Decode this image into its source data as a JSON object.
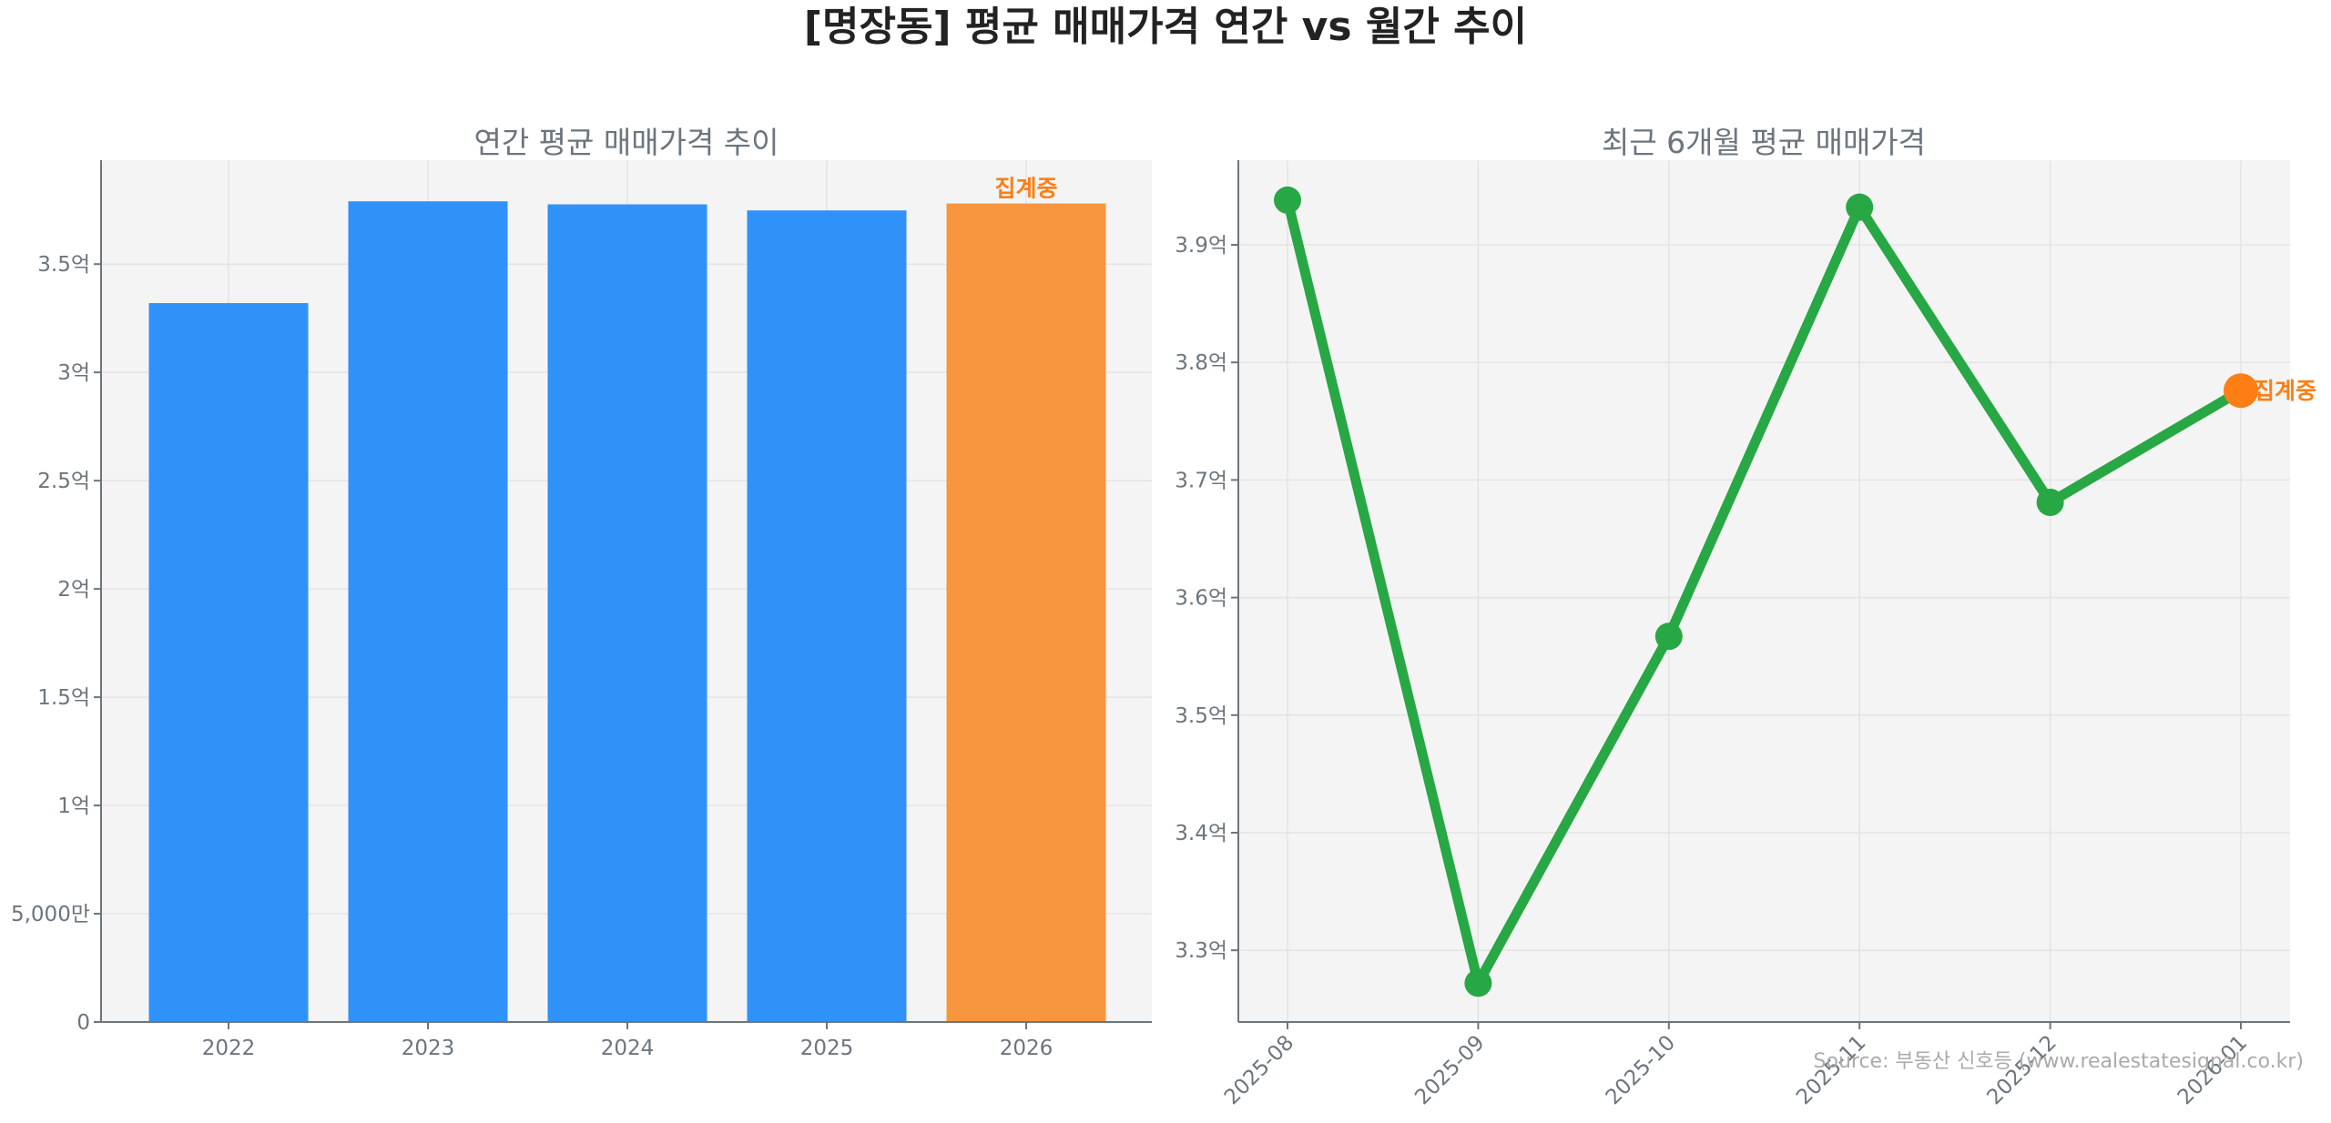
{
  "title": "[명장동] 평균 매매가격 연간 vs 월간 추이",
  "source": "Source: 부동산 신호등 (www.realestatesignal.co.kr)",
  "colors": {
    "bar": "#3092f9",
    "bar_current": "#f89640",
    "line": "#28a745",
    "point_current": "#fd7e14",
    "annotation": "#fd7e14",
    "plot_bg": "#f4f4f4"
  },
  "chart_data": [
    {
      "type": "bar",
      "title": "연간 평균 매매가격 추이",
      "categories": [
        "2022",
        "2023",
        "2024",
        "2025",
        "2026"
      ],
      "values": [
        332000000,
        379000000,
        377600000,
        374800000,
        378000000
      ],
      "ylim": [
        0,
        398000000
      ],
      "yticks": [
        0,
        50000000,
        100000000,
        150000000,
        200000000,
        250000000,
        300000000,
        350000000
      ],
      "ytick_labels": [
        "0",
        "5,000만",
        "1억",
        "1.5억",
        "2억",
        "2.5억",
        "3억",
        "3.5억"
      ],
      "annotation": {
        "category": "2026",
        "text": "집계중"
      },
      "grid": true
    },
    {
      "type": "line",
      "title": "최근 6개월 평균 매매가격",
      "categories": [
        "2025-08",
        "2025-09",
        "2025-10",
        "2025-11",
        "2025-12",
        "2026-01"
      ],
      "values": [
        393800000,
        327200000,
        356700000,
        393200000,
        368100000,
        377600000
      ],
      "ylim": [
        323900000,
        397200000
      ],
      "yticks": [
        330000000,
        340000000,
        350000000,
        360000000,
        370000000,
        380000000,
        390000000
      ],
      "ytick_labels": [
        "3.3억",
        "3.4억",
        "3.5억",
        "3.6억",
        "3.7억",
        "3.8억",
        "3.9억"
      ],
      "annotation": {
        "category": "2026-01",
        "text": "집계중"
      },
      "grid": true
    }
  ]
}
